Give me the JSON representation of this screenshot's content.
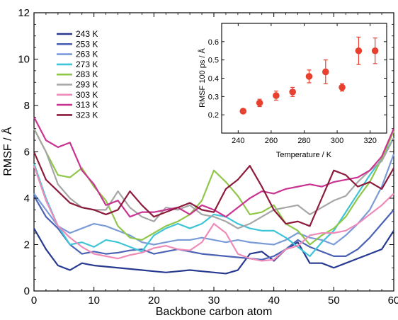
{
  "chart_data": [
    {
      "type": "line",
      "title": "",
      "xlabel": "Backbone carbon atom",
      "ylabel": "RMSF / Å",
      "xlim": [
        0,
        60
      ],
      "ylim": [
        0,
        12
      ],
      "xticks": [
        0,
        10,
        20,
        30,
        40,
        50,
        60
      ],
      "yticks": [
        0,
        2,
        4,
        6,
        8,
        10,
        12
      ],
      "grid": false,
      "legend_position": "top-left",
      "series": [
        {
          "name": "243 K",
          "color": "#283a8f",
          "x": [
            0,
            2,
            4,
            6,
            8,
            10,
            12,
            14,
            16,
            18,
            20,
            22,
            24,
            26,
            28,
            30,
            32,
            34,
            36,
            38,
            40,
            42,
            44,
            46,
            48,
            50,
            52,
            54,
            56,
            58,
            60
          ],
          "values": [
            2.7,
            1.8,
            1.1,
            0.9,
            1.2,
            1.1,
            1.05,
            1.0,
            0.95,
            0.9,
            0.85,
            0.8,
            0.85,
            0.9,
            0.85,
            0.8,
            0.75,
            0.9,
            1.6,
            1.7,
            1.3,
            1.8,
            2.1,
            1.2,
            1.2,
            1.0,
            1.2,
            1.4,
            1.6,
            1.8,
            2.6
          ]
        },
        {
          "name": "253 K",
          "color": "#4c62b5",
          "x": [
            0,
            2,
            4,
            6,
            8,
            10,
            12,
            14,
            16,
            18,
            20,
            22,
            24,
            26,
            28,
            30,
            32,
            34,
            36,
            38,
            40,
            42,
            44,
            46,
            48,
            50,
            52,
            54,
            56,
            58,
            60
          ],
          "values": [
            4.1,
            3.2,
            2.7,
            2.0,
            1.6,
            1.7,
            1.6,
            1.65,
            1.75,
            1.8,
            1.6,
            1.7,
            1.8,
            1.7,
            1.6,
            1.55,
            1.5,
            1.45,
            1.4,
            1.35,
            1.5,
            1.8,
            2.2,
            1.9,
            1.7,
            1.5,
            1.5,
            1.8,
            2.3,
            2.9,
            3.5
          ]
        },
        {
          "name": "263 K",
          "color": "#7a9bd8",
          "x": [
            0,
            2,
            4,
            6,
            8,
            10,
            12,
            14,
            16,
            18,
            20,
            22,
            24,
            26,
            28,
            30,
            32,
            34,
            36,
            38,
            40,
            42,
            44,
            46,
            48,
            50,
            52,
            54,
            56,
            58,
            60
          ],
          "values": [
            4.2,
            3.5,
            2.8,
            2.5,
            2.7,
            2.9,
            2.8,
            2.6,
            2.4,
            2.1,
            2.0,
            2.1,
            2.2,
            2.2,
            2.3,
            2.2,
            2.1,
            2.2,
            2.1,
            2.05,
            2.0,
            2.2,
            2.5,
            2.3,
            2.2,
            2.0,
            2.4,
            2.9,
            3.5,
            4.5,
            5.9
          ]
        },
        {
          "name": "273 K",
          "color": "#3fc4d8",
          "x": [
            0,
            2,
            4,
            6,
            8,
            10,
            12,
            14,
            16,
            18,
            20,
            22,
            24,
            26,
            28,
            30,
            32,
            34,
            36,
            38,
            40,
            42,
            44,
            46,
            48,
            50,
            52,
            54,
            56,
            58,
            60
          ],
          "values": [
            5.5,
            4.0,
            2.8,
            2.0,
            2.1,
            1.9,
            2.2,
            2.1,
            1.9,
            1.7,
            2.4,
            2.7,
            2.9,
            2.7,
            2.9,
            3.3,
            3.2,
            2.9,
            2.7,
            2.6,
            2.6,
            2.3,
            1.9,
            1.5,
            2.1,
            2.6,
            3.4,
            4.2,
            5.0,
            5.7,
            6.6
          ]
        },
        {
          "name": "283 K",
          "color": "#8fc74a",
          "x": [
            0,
            2,
            4,
            6,
            8,
            10,
            12,
            14,
            16,
            18,
            20,
            22,
            24,
            26,
            28,
            30,
            32,
            34,
            36,
            38,
            40,
            42,
            44,
            46,
            48,
            50,
            52,
            54,
            56,
            58,
            60
          ],
          "values": [
            7.0,
            6.0,
            5.0,
            4.9,
            5.3,
            4.5,
            3.9,
            2.8,
            2.3,
            2.2,
            2.5,
            2.8,
            3.0,
            3.3,
            3.9,
            5.2,
            4.7,
            4.1,
            3.3,
            3.4,
            3.7,
            2.9,
            2.6,
            2.0,
            2.4,
            2.7,
            3.2,
            4.0,
            4.7,
            5.7,
            6.9
          ]
        },
        {
          "name": "293 K",
          "color": "#a6a6a6",
          "x": [
            0,
            2,
            4,
            6,
            8,
            10,
            12,
            14,
            16,
            18,
            20,
            22,
            24,
            26,
            28,
            30,
            32,
            34,
            36,
            38,
            40,
            42,
            44,
            46,
            48,
            50,
            52,
            54,
            56,
            58,
            60
          ],
          "values": [
            7.0,
            6.0,
            4.6,
            4.0,
            3.6,
            3.5,
            3.5,
            4.3,
            3.6,
            3.2,
            3.0,
            3.6,
            3.5,
            3.7,
            3.3,
            3.2,
            3.0,
            2.7,
            2.9,
            3.2,
            3.5,
            3.6,
            3.7,
            3.3,
            3.6,
            3.9,
            4.1,
            4.7,
            5.2,
            5.6,
            6.6
          ]
        },
        {
          "name": "303 K",
          "color": "#ef8bb8",
          "x": [
            0,
            2,
            4,
            6,
            8,
            10,
            12,
            14,
            16,
            18,
            20,
            22,
            24,
            26,
            28,
            30,
            32,
            34,
            36,
            38,
            40,
            42,
            44,
            46,
            48,
            50,
            52,
            54,
            56,
            58,
            60
          ],
          "values": [
            5.4,
            3.9,
            2.8,
            2.3,
            1.9,
            1.6,
            1.5,
            1.4,
            1.55,
            1.65,
            1.85,
            1.95,
            1.8,
            1.75,
            2.1,
            2.9,
            2.5,
            1.6,
            1.4,
            1.3,
            1.35,
            1.8,
            1.95,
            2.4,
            2.5,
            2.5,
            2.6,
            2.9,
            3.3,
            3.7,
            4.2
          ]
        },
        {
          "name": "313 K",
          "color": "#c93491",
          "x": [
            0,
            2,
            4,
            6,
            8,
            10,
            12,
            14,
            16,
            18,
            20,
            22,
            24,
            26,
            28,
            30,
            32,
            34,
            36,
            38,
            40,
            42,
            44,
            46,
            48,
            50,
            52,
            54,
            56,
            58,
            60
          ],
          "values": [
            7.5,
            6.5,
            6.2,
            6.4,
            5.2,
            4.6,
            3.7,
            3.9,
            3.2,
            3.4,
            3.4,
            3.5,
            3.6,
            3.3,
            3.7,
            3.5,
            3.2,
            3.6,
            4.0,
            4.3,
            4.2,
            4.4,
            4.5,
            4.6,
            4.5,
            4.7,
            4.8,
            4.9,
            5.2,
            5.8,
            7.0
          ]
        },
        {
          "name": "323 K",
          "color": "#8c1a3a",
          "x": [
            0,
            2,
            4,
            6,
            8,
            10,
            12,
            14,
            16,
            18,
            20,
            22,
            24,
            26,
            28,
            30,
            32,
            34,
            36,
            38,
            40,
            42,
            44,
            46,
            48,
            50,
            52,
            54,
            56,
            58,
            60
          ],
          "values": [
            6.0,
            4.8,
            4.3,
            3.8,
            3.6,
            3.5,
            3.3,
            3.5,
            4.3,
            3.7,
            3.2,
            3.4,
            3.6,
            3.8,
            3.5,
            3.4,
            4.4,
            4.8,
            5.4,
            4.5,
            3.5,
            2.9,
            3.0,
            2.8,
            4.0,
            5.2,
            5.0,
            4.5,
            4.7,
            4.4,
            5.3
          ]
        }
      ]
    },
    {
      "type": "scatter",
      "title": "",
      "xlabel": "Temperature / K",
      "ylabel": "RMSF 100 ps / Å",
      "xlim": [
        230,
        330
      ],
      "ylim": [
        0.1,
        0.7
      ],
      "xticks": [
        240,
        260,
        280,
        300,
        320
      ],
      "yticks": [
        0.2,
        0.3,
        0.4,
        0.5,
        0.6
      ],
      "grid": false,
      "color": "#e8402f",
      "x": [
        243,
        253,
        263,
        273,
        283,
        293,
        303,
        313,
        323
      ],
      "values": [
        0.22,
        0.265,
        0.305,
        0.325,
        0.41,
        0.435,
        0.35,
        0.55,
        0.55
      ],
      "errors": [
        0.01,
        0.02,
        0.025,
        0.025,
        0.035,
        0.065,
        0.02,
        0.075,
        0.07
      ]
    }
  ]
}
